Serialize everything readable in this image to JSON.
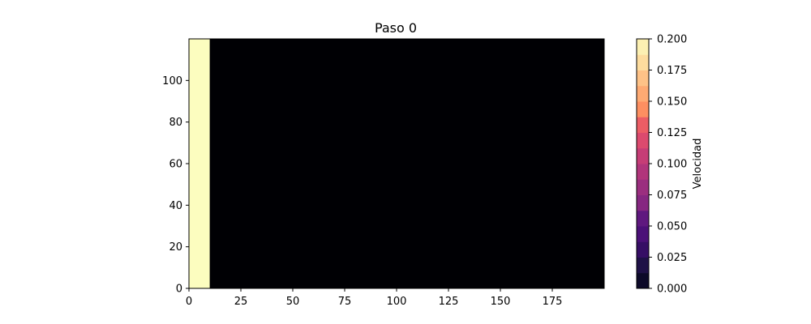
{
  "chart_data": {
    "type": "heatmap",
    "title": "Paso 0",
    "xlabel": "",
    "ylabel": "",
    "xlim": [
      0,
      200
    ],
    "ylim": [
      0,
      120
    ],
    "x_ticks": [
      0,
      25,
      50,
      75,
      100,
      125,
      150,
      175
    ],
    "y_ticks": [
      0,
      20,
      40,
      60,
      80,
      100
    ],
    "grid": false,
    "colormap": "magma",
    "field": {
      "background_value": 0.0,
      "regions": [
        {
          "x_range": [
            0,
            10
          ],
          "y_range": [
            0,
            120
          ],
          "value": 0.2
        }
      ]
    },
    "colorbar": {
      "label": "Velocidad",
      "range": [
        0.0,
        0.2
      ],
      "ticks": [
        0.0,
        0.025,
        0.05,
        0.075,
        0.1,
        0.125,
        0.15,
        0.175,
        0.2
      ],
      "tick_labels": [
        "0.000",
        "0.025",
        "0.050",
        "0.075",
        "0.100",
        "0.125",
        "0.150",
        "0.175",
        "0.200"
      ],
      "levels": 16,
      "colors": [
        "#000004",
        "#0d0a29",
        "#1f1147",
        "#360e65",
        "#4b1078",
        "#5f187f",
        "#721f81",
        "#862781",
        "#9b2e7f",
        "#b1357b",
        "#c63d76",
        "#dc4a6e",
        "#ec5d65",
        "#f7745c",
        "#fd8f61",
        "#feaa73",
        "#fec287",
        "#fddc9e",
        "#fcf0b2",
        "#fcfdbf"
      ]
    }
  }
}
